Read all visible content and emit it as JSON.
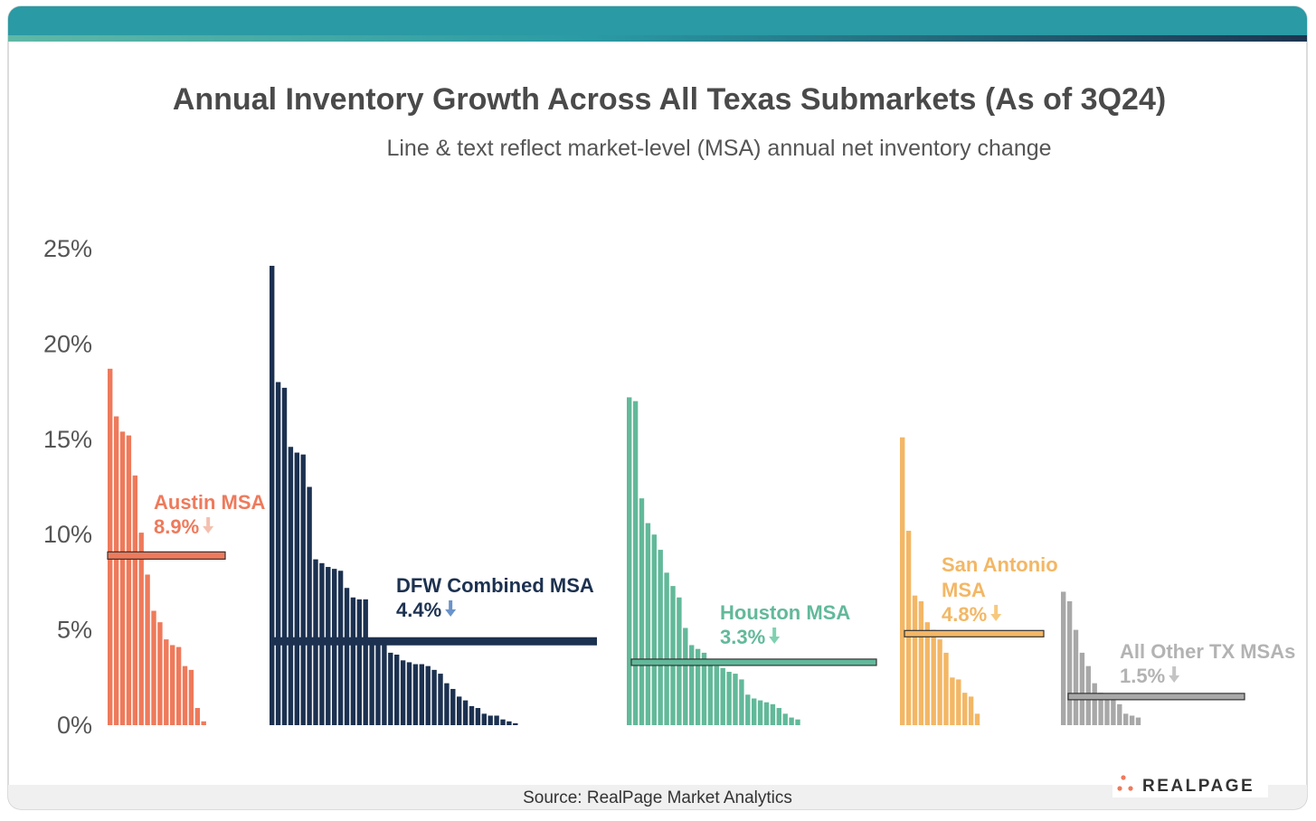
{
  "chart_data": {
    "type": "bar",
    "title": "Annual Inventory Growth Across All Texas Submarkets (As of 3Q24)",
    "subtitle": "Line & text reflect market-level (MSA) annual net inventory change",
    "source": "Source: RealPage Market Analytics",
    "brand": "REALPAGE",
    "ylim": [
      0,
      25
    ],
    "yticks": [
      {
        "value": 0,
        "label": "0%"
      },
      {
        "value": 5,
        "label": "5%"
      },
      {
        "value": 10,
        "label": "10%"
      },
      {
        "value": 15,
        "label": "15%"
      },
      {
        "value": 20,
        "label": "20%"
      },
      {
        "value": 25,
        "label": "25%"
      }
    ],
    "series": [
      {
        "name": "Austin MSA",
        "color": "#ee7a5b",
        "values": [
          18.7,
          16.2,
          15.4,
          15.2,
          13.1,
          10.1,
          7.9,
          6.0,
          5.4,
          4.5,
          4.2,
          4.1,
          3.1,
          2.9,
          0.9,
          0.2
        ],
        "msa_value": 8.9,
        "msa_label": "8.9%"
      },
      {
        "name": "DFW Combined MSA",
        "color": "#1c3150",
        "values": [
          24.1,
          18.0,
          17.7,
          14.6,
          14.3,
          14.2,
          12.5,
          8.7,
          8.5,
          8.3,
          8.2,
          8.1,
          7.2,
          6.7,
          6.6,
          6.6,
          4.6,
          4.5,
          4.3,
          3.8,
          3.7,
          3.4,
          3.3,
          3.2,
          3.2,
          3.1,
          2.9,
          2.7,
          2.2,
          1.9,
          1.5,
          1.3,
          1.0,
          0.9,
          0.6,
          0.5,
          0.5,
          0.3,
          0.2,
          0.1
        ],
        "msa_value": 4.4,
        "msa_label": "4.4%"
      },
      {
        "name": "Houston MSA",
        "color": "#62b99a",
        "values": [
          17.2,
          17.0,
          11.9,
          10.6,
          10.0,
          9.2,
          8.0,
          7.3,
          6.7,
          5.1,
          4.2,
          4.0,
          3.8,
          3.4,
          3.1,
          3.0,
          2.8,
          2.7,
          2.4,
          1.6,
          1.4,
          1.3,
          1.2,
          1.1,
          0.9,
          0.6,
          0.4,
          0.3
        ],
        "msa_value": 3.3,
        "msa_label": "3.3%"
      },
      {
        "name": "San Antonio MSA",
        "color": "#f3b765",
        "values": [
          15.1,
          10.2,
          6.8,
          6.5,
          5.4,
          5.0,
          4.5,
          3.8,
          2.5,
          2.4,
          1.7,
          1.5,
          0.6
        ],
        "msa_value": 4.8,
        "msa_label": "4.8%"
      },
      {
        "name": "All Other TX MSAs",
        "color": "#a8a8a8",
        "values": [
          7.0,
          6.5,
          5.0,
          3.8,
          3.1,
          2.2,
          1.7,
          1.6,
          1.5,
          1.1,
          0.6,
          0.5,
          0.4
        ],
        "msa_value": 1.5,
        "msa_label": "1.5%"
      }
    ]
  }
}
